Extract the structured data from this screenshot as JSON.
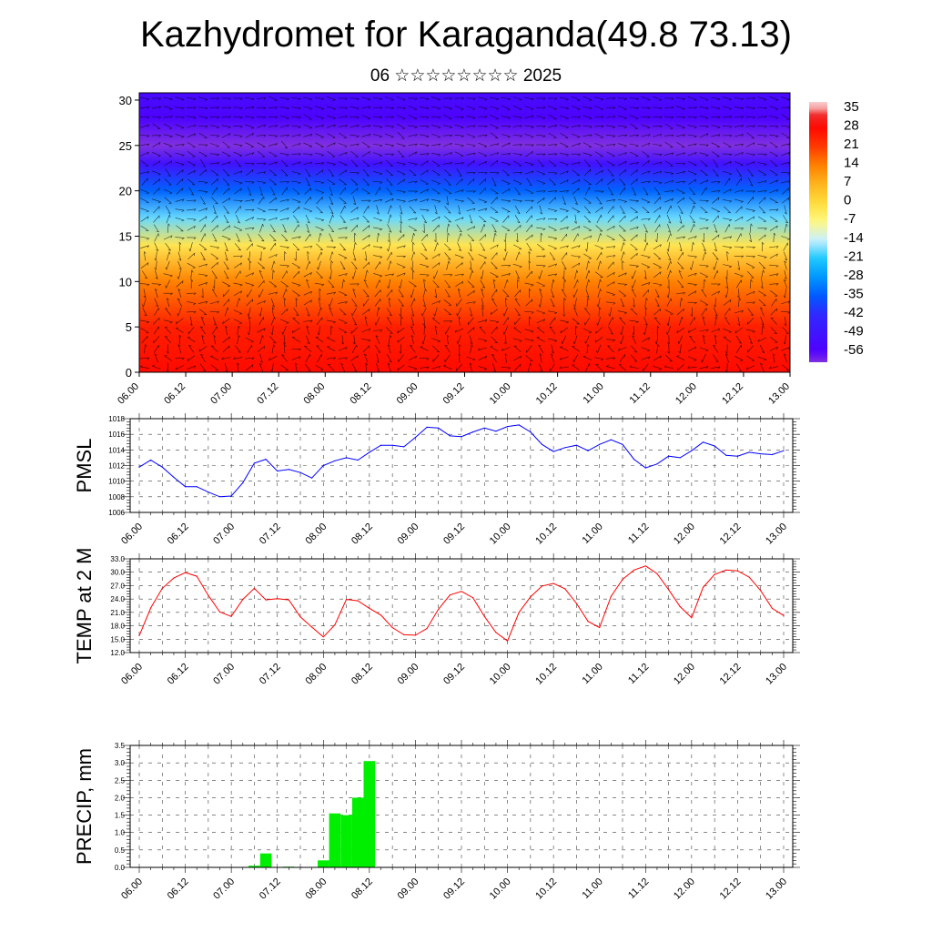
{
  "header": {
    "title": "Kazhydromet for Karaganda(49.8 73.13)",
    "subtitle": "06 ☆☆☆☆☆☆☆☆ 2025"
  },
  "time_labels": [
    "06.00",
    "06.12",
    "07.00",
    "07.12",
    "08.00",
    "08.12",
    "09.00",
    "09.12",
    "10.00",
    "10.12",
    "11.00",
    "11.12",
    "12.00",
    "12.12",
    "13.00"
  ],
  "chart_data": [
    {
      "type": "heatmap",
      "title": "",
      "xlabel": "",
      "ylabel": "",
      "x_ticks": [
        "06.00",
        "06.12",
        "07.00",
        "07.12",
        "08.00",
        "08.12",
        "09.00",
        "09.12",
        "10.00",
        "10.12",
        "11.00",
        "11.12",
        "12.00",
        "12.12",
        "13.00"
      ],
      "y_ticks": [
        0,
        5,
        10,
        15,
        20,
        25,
        30
      ],
      "ylim": [
        0,
        30.8
      ],
      "colorbar": {
        "labels": [
          "35",
          "28",
          "21",
          "14",
          "7",
          "0",
          "-7",
          "-14",
          "-21",
          "-28",
          "-35",
          "-42",
          "-49",
          "-56"
        ],
        "range": [
          -60,
          38
        ]
      },
      "temperature_profile": [
        {
          "height": 0,
          "value": 28
        },
        {
          "height": 5,
          "value": 25
        },
        {
          "height": 10,
          "value": 14
        },
        {
          "height": 14,
          "value": -2
        },
        {
          "height": 17,
          "value": -18
        },
        {
          "height": 20,
          "value": -34
        },
        {
          "height": 23,
          "value": -50
        },
        {
          "height": 25,
          "value": -60
        },
        {
          "height": 28,
          "value": -55
        },
        {
          "height": 30.8,
          "value": -52
        }
      ],
      "overlay": "wind barbs"
    },
    {
      "type": "line",
      "ylabel": "PMSL",
      "ylim": [
        1006,
        1018
      ],
      "y_ticks": [
        "1006",
        "1008",
        "1010",
        "1012",
        "1014",
        "1016",
        "1018"
      ],
      "color": "#0000ff",
      "x": [
        0,
        3,
        6,
        9,
        12,
        15,
        18,
        21,
        24,
        27,
        30,
        33,
        36,
        39,
        42,
        45,
        48,
        51,
        54,
        57,
        60,
        63,
        66,
        69,
        72,
        75,
        78,
        81,
        84,
        87,
        90,
        93,
        96,
        99,
        102,
        105,
        108,
        111,
        114,
        117,
        120,
        123,
        126,
        129,
        132,
        135,
        138,
        141,
        144,
        147,
        150,
        153,
        156,
        159,
        162,
        165,
        168
      ],
      "values": [
        1011.8,
        1012.7,
        1011.8,
        1010.5,
        1009.3,
        1009.3,
        1008.6,
        1008.0,
        1008.1,
        1009.8,
        1012.3,
        1012.8,
        1011.3,
        1011.5,
        1011.1,
        1010.4,
        1012.0,
        1012.6,
        1013.0,
        1012.7,
        1013.7,
        1014.6,
        1014.6,
        1014.4,
        1015.6,
        1016.9,
        1016.8,
        1015.8,
        1015.7,
        1016.3,
        1016.8,
        1016.4,
        1017.0,
        1017.2,
        1016.3,
        1014.7,
        1013.8,
        1014.3,
        1014.6,
        1013.9,
        1014.7,
        1015.3,
        1014.7,
        1012.8,
        1011.7,
        1012.2,
        1013.2,
        1013.0,
        1013.9,
        1015.0,
        1014.5,
        1013.3,
        1013.2,
        1013.7,
        1013.5,
        1013.4,
        1013.9
      ]
    },
    {
      "type": "line",
      "ylabel": "TEMP at 2 M",
      "ylim": [
        12.0,
        33.0
      ],
      "y_ticks": [
        "12.0",
        "15.0",
        "18.0",
        "21.0",
        "24.0",
        "27.0",
        "30.0",
        "33.0"
      ],
      "color": "#ff0000",
      "x": [
        0,
        3,
        6,
        9,
        12,
        15,
        18,
        21,
        24,
        27,
        30,
        33,
        36,
        39,
        42,
        45,
        48,
        51,
        54,
        57,
        60,
        63,
        66,
        69,
        72,
        75,
        78,
        81,
        84,
        87,
        90,
        93,
        96,
        99,
        102,
        105,
        108,
        111,
        114,
        117,
        120,
        123,
        126,
        129,
        132,
        135,
        138,
        141,
        144,
        147,
        150,
        153,
        156,
        159,
        162,
        165,
        168
      ],
      "values": [
        15.8,
        22.0,
        26.4,
        28.7,
        29.9,
        29.1,
        24.8,
        21.1,
        20.1,
        23.9,
        26.4,
        23.8,
        24.1,
        23.8,
        20.0,
        17.7,
        15.5,
        18.2,
        23.9,
        23.6,
        21.9,
        20.4,
        17.6,
        16.0,
        15.9,
        17.4,
        21.7,
        24.9,
        25.7,
        24.3,
        20.1,
        16.5,
        14.6,
        21.0,
        24.5,
        26.9,
        27.5,
        26.3,
        23.0,
        19.0,
        17.6,
        24.6,
        28.4,
        30.5,
        31.4,
        29.7,
        26.1,
        22.3,
        19.8,
        26.6,
        29.5,
        30.5,
        30.3,
        28.9,
        25.9,
        21.9,
        20.3
      ]
    },
    {
      "type": "bar",
      "ylabel": "PRECIP, mm",
      "ylim": [
        0,
        3.5
      ],
      "y_ticks": [
        "0.0",
        "0.5",
        "1.0",
        "1.5",
        "2.0",
        "2.5",
        "3.0",
        "3.5"
      ],
      "color": "#00ee00",
      "x": [
        24,
        27,
        30,
        33,
        36,
        39,
        42,
        45,
        48,
        51,
        54,
        57,
        60,
        63,
        66
      ],
      "values": [
        0.0,
        0.0,
        0.05,
        0.4,
        0.0,
        0.02,
        0.0,
        0.0,
        0.2,
        1.55,
        1.5,
        2.0,
        3.05,
        0.0,
        0.0
      ]
    }
  ]
}
